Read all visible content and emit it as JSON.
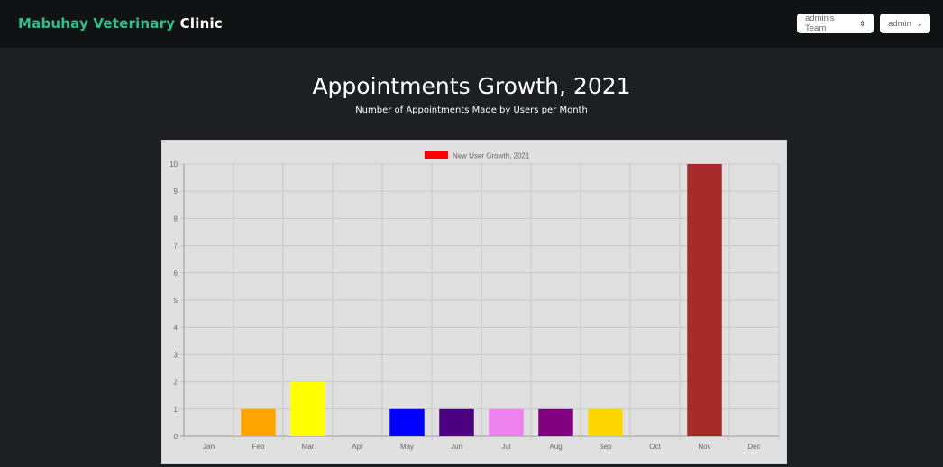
{
  "header": {
    "brand_part1": "Mabuhay Veterinary",
    "brand_part2": "Clinic",
    "team_dropdown": "admin's Team",
    "user_dropdown": "admin"
  },
  "page": {
    "title": "Appointments Growth, 2021",
    "subtitle": "Number of Appointments Made by Users per Month"
  },
  "chart_data": {
    "type": "bar",
    "categories": [
      "Jan",
      "Feb",
      "Mar",
      "Apr",
      "May",
      "Jun",
      "Jul",
      "Aug",
      "Sep",
      "Oct",
      "Nov",
      "Dec"
    ],
    "series": [
      {
        "name": "New User Growth, 2021",
        "values": [
          0,
          1,
          2,
          0,
          1,
          1,
          1,
          1,
          1,
          0,
          10,
          0
        ]
      }
    ],
    "bar_colors": [
      "#ff0000",
      "#ffa500",
      "#ffff00",
      "#008000",
      "#0000ff",
      "#4b0082",
      "#ee82ee",
      "#800080",
      "#ffd700",
      "#00ced1",
      "#a52a2a",
      "#808080"
    ],
    "legend_color": "#ff0000",
    "legend_position": "top",
    "ylim": [
      0,
      10
    ],
    "yticks": [
      0,
      1,
      2,
      3,
      4,
      5,
      6,
      7,
      8,
      9,
      10
    ],
    "grid": true
  }
}
